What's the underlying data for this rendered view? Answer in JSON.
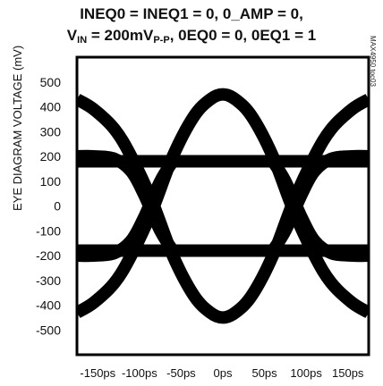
{
  "title_line1": "INEQ0 = INEQ1 = 0, 0_AMP = 0,",
  "title_line2": {
    "prefix": "V",
    "prefix_sub": "IN",
    "mid": " = 200mV",
    "unit_sub": "P-P",
    "suffix": ", 0EQ0 = 0, 0EQ1 = 1"
  },
  "side_note": "MAX4950 toc03",
  "chart_data": {
    "type": "line",
    "title": "INEQ0 = INEQ1 = 0, 0_AMP = 0, VIN = 200mVP-P, 0EQ0 = 0, 0EQ1 = 1",
    "xlabel": "",
    "ylabel": "EYE DIAGRAM VOLTAGE (mV)",
    "xlim": [
      -175,
      175
    ],
    "ylim": [
      -600,
      600
    ],
    "x_ticks": [
      -150,
      -100,
      -50,
      0,
      50,
      100,
      150
    ],
    "x_tick_labels": [
      "-150ps",
      "-100ps",
      "-50ps",
      "0ps",
      "50ps",
      "100ps",
      "150ps"
    ],
    "y_ticks": [
      500,
      400,
      300,
      200,
      100,
      0,
      -100,
      -200,
      -300,
      -400,
      -500
    ],
    "y_tick_labels": [
      "500",
      "400",
      "300",
      "200",
      "100",
      "0",
      "-100",
      "-200",
      "-300",
      "-400",
      "-500"
    ],
    "grid": false,
    "legend": "none",
    "trace_color": "#000000",
    "series": [
      {
        "x": [
          -175,
          -155,
          -130,
          -110,
          -85,
          -60,
          -35,
          -15,
          0,
          15,
          35,
          60,
          85,
          110,
          130,
          155,
          175
        ],
        "values": [
          430,
          390,
          310,
          200,
          20,
          -200,
          -360,
          -430,
          -450,
          -430,
          -360,
          -200,
          20,
          200,
          310,
          390,
          430
        ]
      },
      {
        "x": [
          -175,
          -155,
          -130,
          -110,
          -85,
          -60,
          -35,
          -15,
          0,
          15,
          35,
          60,
          85,
          110,
          130,
          155,
          175
        ],
        "values": [
          -430,
          -390,
          -310,
          -200,
          -20,
          200,
          360,
          430,
          450,
          430,
          360,
          200,
          -20,
          -200,
          -310,
          -390,
          -430
        ]
      },
      {
        "x": [
          -175,
          -130,
          -100,
          -75,
          -40,
          0,
          40,
          75,
          100,
          130,
          175
        ],
        "values": [
          180,
          180,
          180,
          180,
          180,
          180,
          180,
          180,
          180,
          180,
          180
        ]
      },
      {
        "x": [
          -175,
          -130,
          -100,
          -75,
          -40,
          0,
          40,
          75,
          100,
          130,
          175
        ],
        "values": [
          -180,
          -180,
          -180,
          -180,
          -180,
          -180,
          -180,
          -180,
          -180,
          -180,
          -180
        ]
      },
      {
        "x": [
          -175,
          -155,
          -130,
          -110,
          -95,
          -75,
          -60
        ],
        "values": [
          200,
          200,
          190,
          140,
          50,
          -100,
          -180
        ]
      },
      {
        "x": [
          -175,
          -155,
          -130,
          -110,
          -95,
          -75,
          -60
        ],
        "values": [
          -200,
          -200,
          -190,
          -140,
          -50,
          100,
          180
        ]
      },
      {
        "x": [
          60,
          75,
          95,
          110,
          130,
          155,
          175
        ],
        "values": [
          -180,
          -100,
          50,
          140,
          190,
          200,
          200
        ]
      },
      {
        "x": [
          60,
          75,
          95,
          110,
          130,
          155,
          175
        ],
        "values": [
          180,
          100,
          -50,
          -140,
          -190,
          -200,
          -200
        ]
      }
    ]
  }
}
